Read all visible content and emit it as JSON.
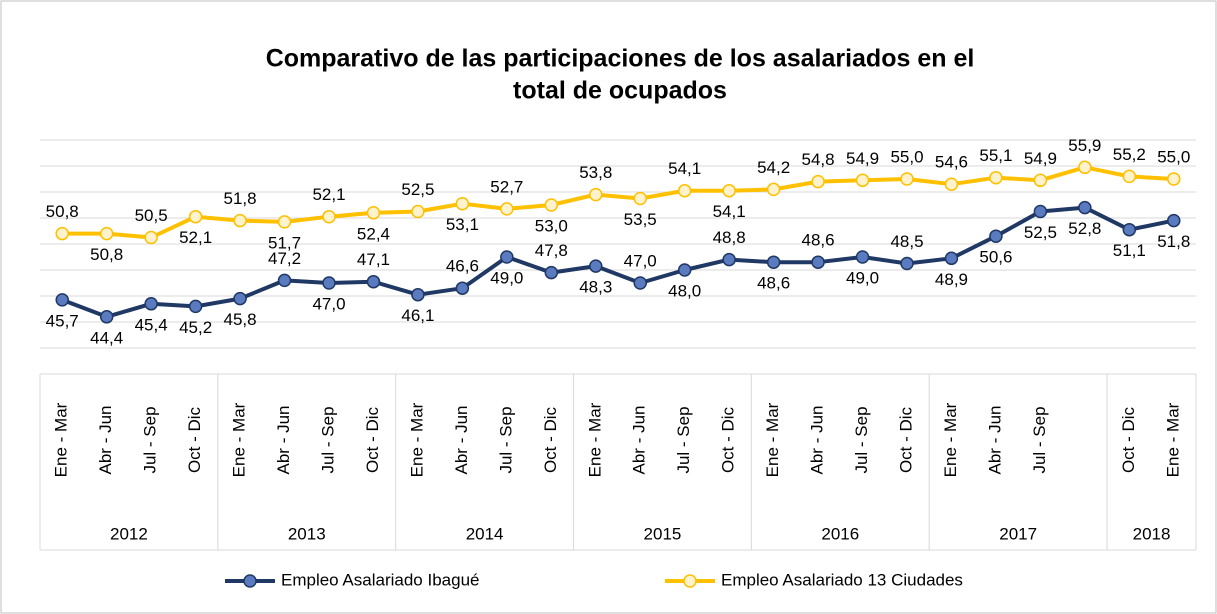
{
  "chart_data": {
    "type": "line",
    "title": [
      "Comparativo de las participaciones de los asalariados en el",
      "total de ocupados"
    ],
    "categories": [
      "Ene - Mar",
      "Abr - Jun",
      "Jul - Sep",
      "Oct - Dic",
      "Ene - Mar",
      "Abr - Jun",
      "Jul - Sep",
      "Oct - Dic",
      "Ene - Mar",
      "Abr - Jun",
      "Jul - Sep",
      "Oct - Dic",
      "Ene - Mar",
      "Abr - Jun",
      "Jul - Sep",
      "Oct - Dic",
      "Ene - Mar",
      "Abr - Jun",
      "Jul - Sep",
      "Oct - Dic",
      "Ene - Mar",
      "Abr - Jun",
      "Jul - Sep",
      null,
      "Oct - Dic",
      "Ene - Mar"
    ],
    "years": [
      "2012",
      "2012",
      "2012",
      "2012",
      "2013",
      "2013",
      "2013",
      "2013",
      "2014",
      "2014",
      "2014",
      "2014",
      "2015",
      "2015",
      "2015",
      "2015",
      "2016",
      "2016",
      "2016",
      "2016",
      "2017",
      "2017",
      "2017",
      "2017",
      "2018",
      "2018"
    ],
    "series": [
      {
        "name": "Empleo Asalariado Ibagué",
        "color": "#203864",
        "marker_fill": "#5b7bc0",
        "values": [
          45.7,
          44.4,
          45.4,
          45.2,
          45.8,
          47.2,
          47.0,
          47.1,
          46.1,
          46.6,
          49.0,
          47.8,
          48.3,
          47.0,
          48.0,
          48.8,
          48.6,
          48.6,
          49.0,
          48.5,
          48.9,
          50.6,
          52.5,
          52.8,
          51.1,
          51.8
        ],
        "value_labels": [
          "45,7",
          "44,4",
          "45,4",
          "45,2",
          "45,8",
          "47,2",
          "47,0",
          "47,1",
          "46,1",
          "46,6",
          "49,0",
          "47,8",
          "48,3",
          "47,0",
          "48,0",
          "48,8",
          "48,6",
          "48,6",
          "49,0",
          "48,5",
          "48,9",
          "50,6",
          "52,5",
          "52,8",
          "51,1",
          "51,8"
        ]
      },
      {
        "name": "Empleo Asalariado 13 Ciudades",
        "color": "#ffc000",
        "marker_fill": "#fff2cc",
        "values": [
          50.8,
          50.8,
          50.5,
          52.1,
          51.8,
          51.7,
          52.1,
          52.4,
          52.5,
          53.1,
          52.7,
          53.0,
          53.8,
          53.5,
          54.1,
          54.1,
          54.2,
          54.8,
          54.9,
          55.0,
          54.6,
          55.1,
          54.9,
          55.9,
          55.2,
          55.0
        ],
        "value_labels": [
          "50,8",
          "50,8",
          "50,5",
          "52,1",
          "51,8",
          "51,7",
          "52,1",
          "52,4",
          "52,5",
          "53,1",
          "52,7",
          "53,0",
          "53,8",
          "53,5",
          "54,1",
          "54,1",
          "54,2",
          "54,8",
          "54,9",
          "55,0",
          "54,6",
          "55,1",
          "54,9",
          "55,9",
          "55,2",
          "55,0"
        ]
      }
    ],
    "ylim": [
      40,
      58
    ],
    "yticks": [
      40,
      42,
      44,
      46,
      48,
      50,
      52,
      54,
      56,
      58
    ],
    "grid": true,
    "legend": "bottom"
  }
}
